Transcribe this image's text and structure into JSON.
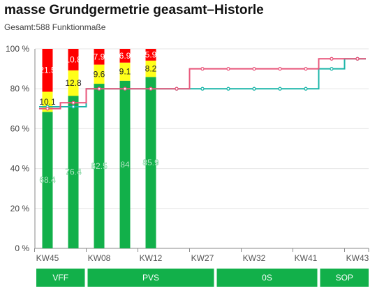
{
  "header": {
    "title": "masse Grundgermetrie geasamt–Historle",
    "subtitle": "Gesamt:588 Funktionmaße"
  },
  "chart_data": {
    "type": "bar",
    "title": "masse Grundgermetrie geasamt–Historle",
    "subtitle": "Gesamt:588 Funktionmaße",
    "ylim": [
      0,
      100
    ],
    "yticks": [
      "0 %",
      "20 %",
      "40 %",
      "60 %",
      "80 %",
      "100 %"
    ],
    "ytick_values": [
      0,
      20,
      40,
      60,
      80,
      100
    ],
    "x_labels": [
      "KW45",
      "KW08",
      "KW12",
      "KW27",
      "KW32",
      "KW41",
      "KW43"
    ],
    "x_label_slots": [
      0,
      2,
      4,
      6,
      8,
      10,
      12
    ],
    "slot_count": 13,
    "grid": true,
    "colors": {
      "green": "#12b04a",
      "yellow": "#ffff1a",
      "red": "#ff0000",
      "teal": "#1ab5a8",
      "pink": "#e8557a"
    },
    "bars": [
      {
        "slot": 0,
        "green": 68.4,
        "yellow": 10.1,
        "red": 21.5
      },
      {
        "slot": 1,
        "green": 76.4,
        "yellow": 12.8,
        "red": 10.8
      },
      {
        "slot": 2,
        "green": 82.5,
        "yellow": 9.6,
        "red": 7.9
      },
      {
        "slot": 3,
        "green": 84,
        "yellow": 9.1,
        "red": 6.9
      },
      {
        "slot": 4,
        "green": 85.9,
        "yellow": 8.2,
        "red": 5.9
      }
    ],
    "series": [
      {
        "color": "teal",
        "values": [
          71,
          71,
          80,
          80,
          80,
          80,
          80,
          80,
          80,
          80,
          80,
          90,
          95
        ]
      },
      {
        "color": "pink",
        "values": [
          70,
          73,
          80,
          80,
          80,
          80,
          90,
          90,
          90,
          90,
          90,
          95,
          95
        ]
      }
    ],
    "phases": [
      {
        "label": "VFF",
        "from": 0,
        "to": 1
      },
      {
        "label": "PVS",
        "from": 2,
        "to": 6
      },
      {
        "label": "0S",
        "from": 7,
        "to": 10
      },
      {
        "label": "SOP",
        "from": 11,
        "to": 12
      }
    ]
  }
}
